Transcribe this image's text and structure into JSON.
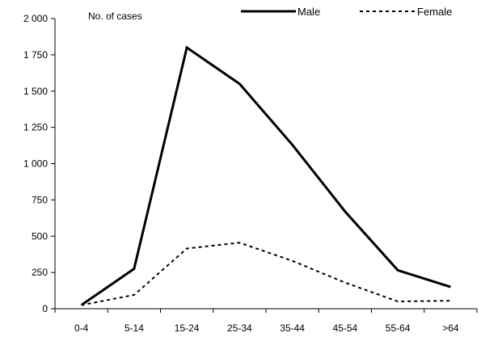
{
  "chart_data": {
    "type": "line",
    "title": "",
    "xlabel": "",
    "ylabel": "No.  of cases",
    "categories": [
      "0-4",
      "5-14",
      "15-24",
      "25-34",
      "35-44",
      "45-54",
      "55-64",
      ">64"
    ],
    "ylim": [
      0,
      2000
    ],
    "yticks": [
      {
        "value": 0,
        "label": "0"
      },
      {
        "value": 250,
        "label": "250"
      },
      {
        "value": 500,
        "label": "500"
      },
      {
        "value": 750,
        "label": "750"
      },
      {
        "value": 1000,
        "label": "1 000"
      },
      {
        "value": 1250,
        "label": "1 250"
      },
      {
        "value": 1500,
        "label": "1 500"
      },
      {
        "value": 1750,
        "label": "1 750"
      },
      {
        "value": 2000,
        "label": "2 000"
      }
    ],
    "grid": false,
    "legend_position": "top-right",
    "series": [
      {
        "name": "Male",
        "style": "solid",
        "color": "#000000",
        "values": [
          25,
          275,
          1800,
          1550,
          1130,
          670,
          265,
          150
        ]
      },
      {
        "name": "Female",
        "style": "dashed",
        "color": "#000000",
        "values": [
          25,
          95,
          415,
          455,
          330,
          180,
          50,
          55
        ]
      }
    ]
  }
}
